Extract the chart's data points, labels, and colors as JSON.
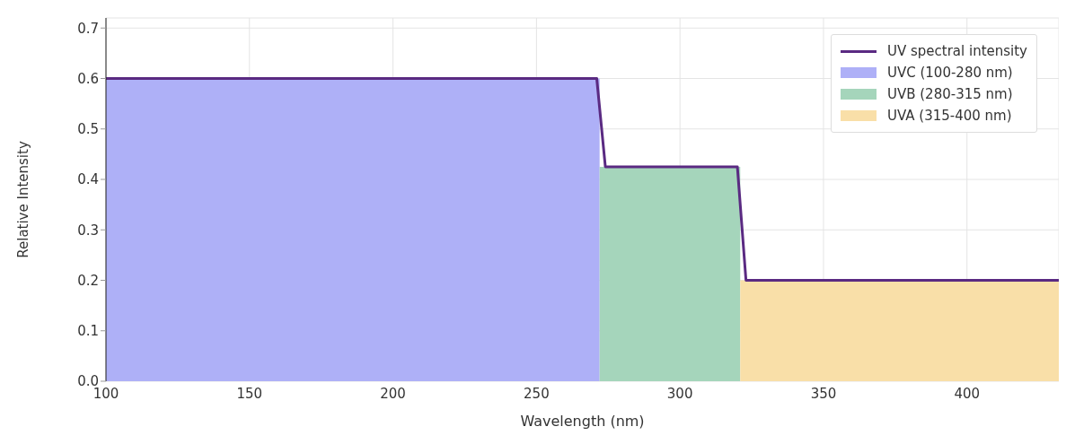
{
  "chart_data": {
    "type": "area",
    "xlabel": "Wavelength (nm)",
    "ylabel": "Relative Intensity",
    "xlim": [
      100,
      432
    ],
    "xticks": [
      100,
      150,
      200,
      250,
      300,
      350,
      400
    ],
    "ylim": [
      0,
      0.72
    ],
    "yticks": [
      {
        "value": 0,
        "label": "0.0"
      },
      0.1,
      0.2,
      0.3,
      0.4,
      0.5,
      0.6,
      0.7
    ],
    "grid": true,
    "legend": "top right",
    "series": [
      {
        "name": "UVC (100-280 nm)",
        "color": "#aeb0f7",
        "x": [
          100,
          272
        ],
        "values": [
          0.6,
          0.6
        ]
      },
      {
        "name": "UVB (280-315 nm)",
        "color": "#a5d5bb",
        "x": [
          272,
          321
        ],
        "values": [
          0.425,
          0.425
        ]
      },
      {
        "name": "UVA (315-400 nm)",
        "color": "#f9dfa8",
        "x": [
          321,
          432
        ],
        "values": [
          0.2,
          0.2
        ]
      },
      {
        "name": "UV spectral intensity",
        "type": "line",
        "color": "#5a2a82",
        "x": [
          100,
          271,
          274,
          320,
          323,
          432
        ],
        "values": [
          0.6,
          0.6,
          0.425,
          0.425,
          0.2,
          0.2
        ]
      }
    ]
  }
}
